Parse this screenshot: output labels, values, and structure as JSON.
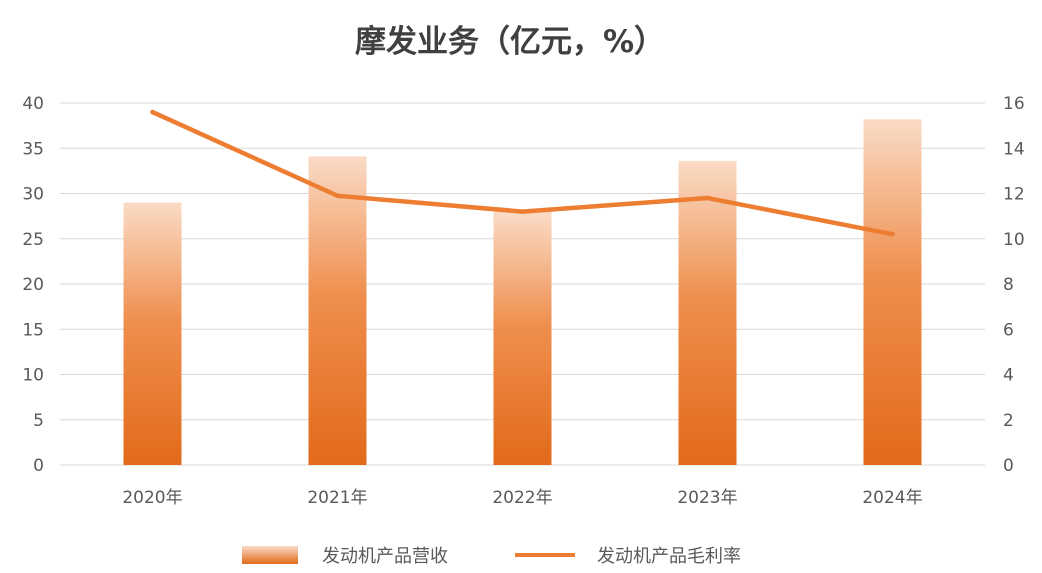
{
  "chart_data": {
    "type": "bar",
    "title": "摩发业务（亿元，%）",
    "categories": [
      "2020年",
      "2021年",
      "2022年",
      "2023年",
      "2024年"
    ],
    "series": [
      {
        "name": "发动机产品营收",
        "type": "bar",
        "axis": "left",
        "values": [
          29.0,
          34.1,
          28.0,
          33.6,
          38.2
        ]
      },
      {
        "name": "发动机产品毛利率",
        "type": "line",
        "axis": "right",
        "values": [
          15.6,
          11.9,
          11.2,
          11.8,
          10.2
        ]
      }
    ],
    "y_left": {
      "range": [
        0,
        40
      ],
      "ticks": [
        "0",
        "5",
        "10",
        "15",
        "20",
        "25",
        "30",
        "35",
        "40"
      ]
    },
    "y_right": {
      "range": [
        0,
        16
      ],
      "ticks": [
        "0",
        "2",
        "4",
        "6",
        "8",
        "10",
        "12",
        "14",
        "16"
      ]
    },
    "grid": true,
    "legend_position": "bottom",
    "colors": {
      "bar_top": "#FADBC6",
      "bar_bottom": "#E26A1A",
      "line": "#ED7D31",
      "grid": "#D9D9D9",
      "text": "#595959"
    }
  }
}
